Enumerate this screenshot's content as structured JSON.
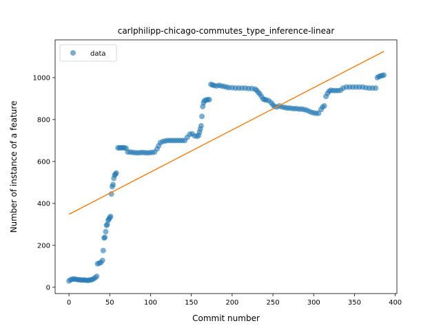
{
  "chart_data": {
    "type": "scatter",
    "title": "carlphilipp-chicago-commutes_type_inference-linear",
    "xlabel": "Commit number",
    "ylabel": "Number of instance of a feature",
    "xlim": [
      -17,
      402
    ],
    "ylim": [
      -30,
      1180
    ],
    "xticks": [
      0,
      50,
      100,
      150,
      200,
      250,
      300,
      350,
      400
    ],
    "yticks": [
      0,
      200,
      400,
      600,
      800,
      1000
    ],
    "legend": {
      "position": "top-left",
      "entries": [
        "data"
      ]
    },
    "colors": {
      "data": "#1f77b4",
      "fit": "#ff7f0e"
    },
    "series": [
      {
        "name": "data",
        "kind": "scatter",
        "points": [
          [
            0,
            30
          ],
          [
            2,
            36
          ],
          [
            4,
            38
          ],
          [
            6,
            40
          ],
          [
            8,
            38
          ],
          [
            10,
            37
          ],
          [
            12,
            36
          ],
          [
            14,
            35
          ],
          [
            16,
            34
          ],
          [
            18,
            35
          ],
          [
            20,
            34
          ],
          [
            22,
            33
          ],
          [
            24,
            33
          ],
          [
            26,
            35
          ],
          [
            28,
            36
          ],
          [
            30,
            40
          ],
          [
            32,
            45
          ],
          [
            34,
            52
          ],
          [
            35,
            112
          ],
          [
            37,
            115
          ],
          [
            39,
            118
          ],
          [
            41,
            128
          ],
          [
            42,
            175
          ],
          [
            43,
            235
          ],
          [
            44,
            238
          ],
          [
            45,
            265
          ],
          [
            46,
            295
          ],
          [
            47,
            300
          ],
          [
            48,
            320
          ],
          [
            49,
            325
          ],
          [
            50,
            332
          ],
          [
            51,
            338
          ],
          [
            52,
            445
          ],
          [
            53,
            480
          ],
          [
            54,
            490
          ],
          [
            55,
            520
          ],
          [
            56,
            535
          ],
          [
            57,
            540
          ],
          [
            58,
            545
          ],
          [
            60,
            665
          ],
          [
            62,
            665
          ],
          [
            64,
            665
          ],
          [
            66,
            666
          ],
          [
            68,
            665
          ],
          [
            70,
            663
          ],
          [
            72,
            645
          ],
          [
            75,
            645
          ],
          [
            78,
            643
          ],
          [
            81,
            642
          ],
          [
            84,
            641
          ],
          [
            87,
            642
          ],
          [
            90,
            643
          ],
          [
            93,
            642
          ],
          [
            96,
            641
          ],
          [
            99,
            642
          ],
          [
            102,
            643
          ],
          [
            105,
            645
          ],
          [
            108,
            660
          ],
          [
            110,
            675
          ],
          [
            112,
            690
          ],
          [
            115,
            695
          ],
          [
            118,
            698
          ],
          [
            121,
            700
          ],
          [
            124,
            700
          ],
          [
            127,
            700
          ],
          [
            130,
            700
          ],
          [
            133,
            700
          ],
          [
            136,
            700
          ],
          [
            139,
            700
          ],
          [
            142,
            700
          ],
          [
            145,
            715
          ],
          [
            148,
            730
          ],
          [
            151,
            732
          ],
          [
            154,
            722
          ],
          [
            157,
            720
          ],
          [
            159,
            725
          ],
          [
            160,
            740
          ],
          [
            161,
            755
          ],
          [
            162,
            770
          ],
          [
            163,
            815
          ],
          [
            164,
            862
          ],
          [
            165,
            880
          ],
          [
            166,
            890
          ],
          [
            168,
            893
          ],
          [
            170,
            895
          ],
          [
            172,
            895
          ],
          [
            174,
            968
          ],
          [
            176,
            965
          ],
          [
            178,
            962
          ],
          [
            181,
            960
          ],
          [
            184,
            963
          ],
          [
            187,
            960
          ],
          [
            190,
            958
          ],
          [
            193,
            955
          ],
          [
            196,
            952
          ],
          [
            200,
            952
          ],
          [
            204,
            950
          ],
          [
            208,
            950
          ],
          [
            212,
            950
          ],
          [
            216,
            950
          ],
          [
            220,
            948
          ],
          [
            224,
            948
          ],
          [
            228,
            945
          ],
          [
            230,
            940
          ],
          [
            232,
            930
          ],
          [
            234,
            922
          ],
          [
            236,
            910
          ],
          [
            238,
            898
          ],
          [
            240,
            895
          ],
          [
            242,
            893
          ],
          [
            245,
            890
          ],
          [
            248,
            880
          ],
          [
            250,
            870
          ],
          [
            252,
            862
          ],
          [
            255,
            860
          ],
          [
            258,
            865
          ],
          [
            261,
            860
          ],
          [
            264,
            858
          ],
          [
            267,
            855
          ],
          [
            270,
            855
          ],
          [
            273,
            853
          ],
          [
            276,
            852
          ],
          [
            279,
            852
          ],
          [
            282,
            850
          ],
          [
            285,
            850
          ],
          [
            288,
            848
          ],
          [
            291,
            845
          ],
          [
            294,
            840
          ],
          [
            297,
            835
          ],
          [
            300,
            832
          ],
          [
            303,
            830
          ],
          [
            306,
            830
          ],
          [
            309,
            848
          ],
          [
            311,
            860
          ],
          [
            313,
            865
          ],
          [
            315,
            910
          ],
          [
            317,
            925
          ],
          [
            319,
            935
          ],
          [
            321,
            940
          ],
          [
            324,
            938
          ],
          [
            327,
            938
          ],
          [
            330,
            938
          ],
          [
            333,
            940
          ],
          [
            336,
            950
          ],
          [
            340,
            955
          ],
          [
            344,
            955
          ],
          [
            348,
            955
          ],
          [
            352,
            955
          ],
          [
            356,
            955
          ],
          [
            360,
            955
          ],
          [
            364,
            952
          ],
          [
            368,
            950
          ],
          [
            372,
            950
          ],
          [
            376,
            950
          ],
          [
            378,
            1000
          ],
          [
            380,
            1005
          ],
          [
            382,
            1008
          ],
          [
            384,
            1010
          ],
          [
            386,
            1012
          ]
        ]
      },
      {
        "kind": "line",
        "points": [
          [
            0,
            348
          ],
          [
            386,
            1125
          ]
        ]
      }
    ]
  }
}
